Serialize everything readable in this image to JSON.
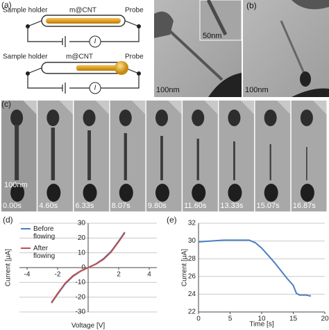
{
  "panel_a": {
    "label": "(a)",
    "top": {
      "holder": "Sample holder",
      "sample": "m@CNT",
      "probe": "Probe",
      "meter": "I"
    },
    "bottom": {
      "holder": "Sample holder",
      "sample": "m@CNT",
      "probe": "Probe",
      "meter": "I"
    }
  },
  "panel_b": {
    "label": "(b)",
    "scale_inset": "50nm",
    "scale_left": "100nm",
    "scale_right": "100nm"
  },
  "panel_c": {
    "label": "(c)",
    "scale": "100nm",
    "times": [
      "0.00s",
      "4.60s",
      "6.33s",
      "8.07s",
      "9.80s",
      "11.60s",
      "13.33s",
      "15.07s",
      "16.87s"
    ]
  },
  "chart_data": [
    {
      "label": "(d)",
      "type": "line",
      "xlabel": "Voltage [V]",
      "ylabel": "Current [μA]",
      "x": [
        -2.4,
        -2,
        -1.5,
        -1,
        -0.5,
        0,
        0.5,
        1,
        1.5,
        2,
        2.4
      ],
      "series": [
        {
          "name": "Before flowing",
          "color": "#4a7fc1",
          "values": [
            -24,
            -18,
            -11,
            -6,
            -2.5,
            0,
            2.5,
            6,
            11,
            18,
            24
          ]
        },
        {
          "name": "After flowing",
          "color": "#c0504d",
          "values": [
            -23.5,
            -17.5,
            -10.5,
            -5.5,
            -2.3,
            0,
            2.3,
            5.5,
            10.5,
            17.5,
            23.5
          ]
        }
      ],
      "xlim": [
        -4.5,
        4.5
      ],
      "xticks": [
        -4,
        -2,
        0,
        2,
        4
      ],
      "ylim": [
        -30,
        30
      ],
      "yticks": [
        -30,
        -20,
        -10,
        0,
        10,
        20,
        30
      ],
      "grid": true,
      "legend": "upper left"
    },
    {
      "label": "(e)",
      "type": "line",
      "xlabel": "Time [s]",
      "ylabel": "Current [μA]",
      "x": [
        0,
        2,
        4,
        6,
        8,
        9,
        10,
        11,
        12,
        13,
        14,
        15,
        15.5,
        16,
        17,
        17.8
      ],
      "series": [
        {
          "name": null,
          "color": "#4a7fc1",
          "values": [
            29.9,
            30,
            30.1,
            30.1,
            30.1,
            29.8,
            29.2,
            28.4,
            27.6,
            26.7,
            25.8,
            25,
            24.1,
            23.9,
            23.9,
            23.8
          ]
        }
      ],
      "xlim": [
        0,
        20
      ],
      "xticks": [
        0,
        5,
        10,
        15,
        20
      ],
      "ylim": [
        22,
        32
      ],
      "yticks": [
        22,
        24,
        26,
        28,
        30,
        32
      ],
      "grid": true
    }
  ]
}
